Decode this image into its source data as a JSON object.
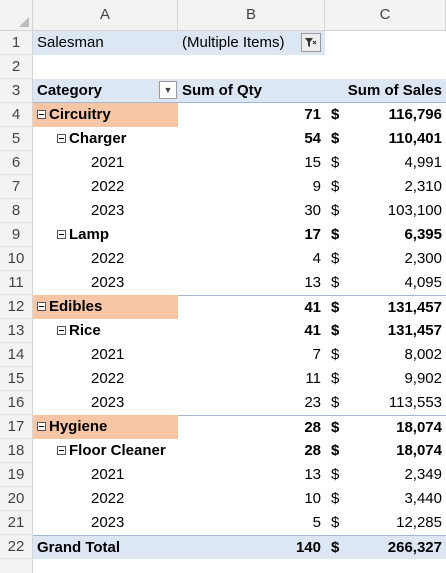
{
  "columns": [
    "A",
    "B",
    "C"
  ],
  "filter": {
    "label": "Salesman",
    "value": "(Multiple Items)"
  },
  "pivot_header": {
    "category": "Category",
    "qty": "Sum of Qty",
    "sales": "Sum of Sales"
  },
  "currency_symbol": "$",
  "rows": [
    {
      "num": "1"
    },
    {
      "num": "2"
    },
    {
      "num": "3"
    },
    {
      "num": "4",
      "label": "Circuitry",
      "qty": "71",
      "sales": "116,796"
    },
    {
      "num": "5",
      "label": "Charger",
      "qty": "54",
      "sales": "110,401"
    },
    {
      "num": "6",
      "label": "2021",
      "qty": "15",
      "sales": "4,991"
    },
    {
      "num": "7",
      "label": "2022",
      "qty": "9",
      "sales": "2,310"
    },
    {
      "num": "8",
      "label": "2023",
      "qty": "30",
      "sales": "103,100"
    },
    {
      "num": "9",
      "label": "Lamp",
      "qty": "17",
      "sales": "6,395"
    },
    {
      "num": "10",
      "label": "2022",
      "qty": "4",
      "sales": "2,300"
    },
    {
      "num": "11",
      "label": "2023",
      "qty": "13",
      "sales": "4,095"
    },
    {
      "num": "12",
      "label": "Edibles",
      "qty": "41",
      "sales": "131,457"
    },
    {
      "num": "13",
      "label": "Rice",
      "qty": "41",
      "sales": "131,457"
    },
    {
      "num": "14",
      "label": "2021",
      "qty": "7",
      "sales": "8,002"
    },
    {
      "num": "15",
      "label": "2022",
      "qty": "11",
      "sales": "9,902"
    },
    {
      "num": "16",
      "label": "2023",
      "qty": "23",
      "sales": "113,553"
    },
    {
      "num": "17",
      "label": "Hygiene",
      "qty": "28",
      "sales": "18,074"
    },
    {
      "num": "18",
      "label": "Floor Cleaner",
      "qty": "28",
      "sales": "18,074"
    },
    {
      "num": "19",
      "label": "2021",
      "qty": "13",
      "sales": "2,349"
    },
    {
      "num": "20",
      "label": "2022",
      "qty": "10",
      "sales": "3,440"
    },
    {
      "num": "21",
      "label": "2023",
      "qty": "5",
      "sales": "12,285"
    },
    {
      "num": "22",
      "label": "Grand Total",
      "qty": "140",
      "sales": "266,327"
    }
  ],
  "colors": {
    "category_highlight": "#f7c6a5",
    "pivot_blue": "#dde7f3",
    "header_gray": "#f3f3f3"
  }
}
